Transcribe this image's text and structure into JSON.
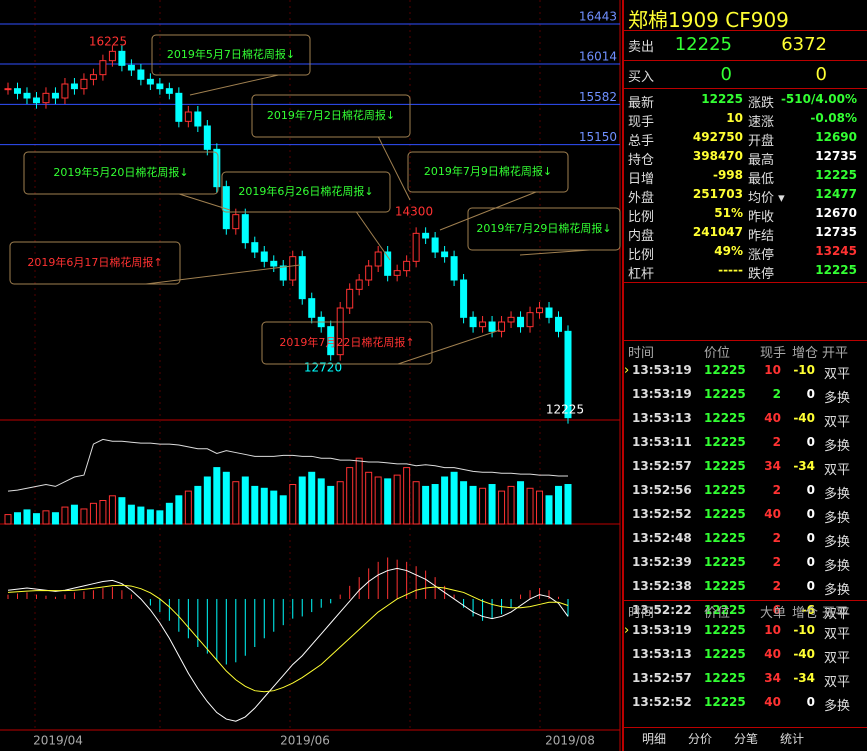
{
  "chart_data": {
    "type": "candlestick",
    "price_lines": [
      16443,
      16014,
      15582,
      15150
    ],
    "ylim": [
      12200,
      16700
    ],
    "up_color": "#ff3232",
    "down_color": "#00ffff",
    "closes": [
      15750,
      15700,
      15650,
      15600,
      15700,
      15650,
      15800,
      15750,
      15850,
      15900,
      16050,
      16150,
      16000,
      15950,
      15850,
      15800,
      15750,
      15700,
      15400,
      15500,
      15350,
      15100,
      14700,
      14250,
      14400,
      14100,
      14000,
      13900,
      13850,
      13700,
      13950,
      13500,
      13300,
      13200,
      12900,
      13400,
      13600,
      13700,
      13850,
      14000,
      13750,
      13800,
      13900,
      14200,
      14150,
      14000,
      13950,
      13700,
      13300,
      13200,
      13250,
      13150,
      13250,
      13300,
      13200,
      13350,
      13400,
      13300,
      13150,
      12225
    ],
    "extremes": [
      {
        "value": 16225,
        "color": "#ff3232"
      },
      {
        "value": 14300,
        "color": "#ff3232"
      },
      {
        "value": 12720,
        "color": "#00ffff"
      },
      {
        "value": 12225,
        "color": "#ffffff"
      }
    ],
    "annotations": [
      {
        "text": "2019年5月7日棉花周报↓",
        "color": "#33ff33"
      },
      {
        "text": "2019年7月2日棉花周报↓",
        "color": "#33ff33"
      },
      {
        "text": "2019年5月20日棉花周报↓",
        "color": "#33ff33"
      },
      {
        "text": "2019年6月26日棉花周报↓",
        "color": "#33ff33"
      },
      {
        "text": "2019年7月9日棉花周报↓",
        "color": "#33ff33"
      },
      {
        "text": "2019年7月29日棉花周报↓",
        "color": "#33ff33"
      },
      {
        "text": "2019年6月17日棉花周报↑",
        "color": "#ff3232"
      },
      {
        "text": "2019年7月22日棉花周报↑",
        "color": "#ff3232"
      }
    ],
    "volume": {
      "ylim": [
        0,
        100
      ],
      "values": [
        10,
        12,
        15,
        11,
        14,
        12,
        18,
        20,
        16,
        22,
        25,
        30,
        28,
        20,
        18,
        15,
        14,
        22,
        30,
        35,
        40,
        50,
        60,
        55,
        45,
        50,
        40,
        38,
        35,
        30,
        42,
        50,
        55,
        48,
        40,
        45,
        60,
        70,
        55,
        50,
        48,
        52,
        60,
        45,
        40,
        42,
        50,
        55,
        45,
        40,
        38,
        42,
        35,
        40,
        45,
        38,
        35,
        30,
        40,
        42
      ],
      "open_interest": [
        35,
        36,
        38,
        40,
        42,
        40,
        45,
        50,
        52,
        85,
        90,
        88,
        88,
        87,
        86,
        86,
        85,
        85,
        84,
        82,
        80,
        80,
        75,
        78,
        76,
        74,
        72,
        72,
        72,
        73,
        73,
        72,
        72,
        70,
        70,
        68,
        68,
        67,
        66,
        66,
        65,
        64,
        64,
        62,
        63,
        62,
        60,
        60,
        58,
        56,
        55,
        55,
        54,
        54,
        53,
        53,
        52,
        52,
        51,
        51
      ]
    },
    "macd": {
      "ylim": [
        -600,
        270
      ],
      "hist": [
        20,
        25,
        30,
        20,
        15,
        10,
        20,
        30,
        35,
        40,
        50,
        55,
        40,
        20,
        0,
        -30,
        -60,
        -100,
        -150,
        -180,
        -220,
        -250,
        -280,
        -300,
        -290,
        -260,
        -220,
        -180,
        -150,
        -120,
        -90,
        -80,
        -60,
        -40,
        -20,
        20,
        60,
        100,
        140,
        170,
        190,
        180,
        170,
        150,
        130,
        100,
        60,
        20,
        -40,
        -80,
        -100,
        -90,
        -70,
        -40,
        20,
        40,
        50,
        40,
        10,
        -80
      ],
      "dif": [
        40,
        45,
        50,
        45,
        40,
        35,
        40,
        50,
        60,
        70,
        80,
        85,
        70,
        40,
        0,
        -50,
        -110,
        -180,
        -260,
        -340,
        -410,
        -470,
        -520,
        -550,
        -560,
        -540,
        -500,
        -450,
        -400,
        -350,
        -300,
        -260,
        -210,
        -160,
        -110,
        -60,
        -10,
        40,
        80,
        110,
        130,
        140,
        130,
        110,
        90,
        60,
        30,
        0,
        -30,
        -60,
        -80,
        -90,
        -80,
        -60,
        -30,
        0,
        20,
        10,
        -20,
        -80
      ],
      "dea": [
        30,
        33,
        36,
        38,
        39,
        38,
        38,
        40,
        44,
        49,
        55,
        61,
        63,
        59,
        47,
        28,
        0,
        -36,
        -80,
        -130,
        -180,
        -230,
        -280,
        -330,
        -370,
        -400,
        -420,
        -425,
        -420,
        -405,
        -385,
        -360,
        -330,
        -300,
        -260,
        -220,
        -180,
        -140,
        -100,
        -60,
        -30,
        0,
        20,
        40,
        50,
        55,
        50,
        40,
        30,
        10,
        -10,
        -25,
        -35,
        -40,
        -40,
        -35,
        -25,
        -15,
        -15,
        -30
      ]
    },
    "x_labels": [
      "2019/04",
      "2019/06",
      "2019/08"
    ]
  },
  "panel": {
    "title": "郑棉1909  CF909",
    "sell": {
      "label": "卖出",
      "price": 12225,
      "volume": 6372
    },
    "buy": {
      "label": "买入",
      "price": 0,
      "volume": 0
    },
    "quotes": [
      {
        "l": "最新",
        "v": 12225,
        "vc": "#33ff33",
        "l2": "涨跌",
        "v2": "-510/4.00%",
        "vc2": "#33ff33"
      },
      {
        "l": "现手",
        "v": 10,
        "vc": "#ffff33",
        "l2": "速涨",
        "v2": "-0.08%",
        "vc2": "#33ff33"
      },
      {
        "l": "总手",
        "v": 492750,
        "vc": "#ffff33",
        "l2": "开盘",
        "v2": 12690,
        "vc2": "#33ff33"
      },
      {
        "l": "持仓",
        "v": 398470,
        "vc": "#ffff33",
        "l2": "最高",
        "v2": 12735,
        "vc2": "#ffffff"
      },
      {
        "l": "日增",
        "v": -998,
        "vc": "#ffff33",
        "l2": "最低",
        "v2": 12225,
        "vc2": "#33ff33"
      },
      {
        "l": "外盘",
        "v": 251703,
        "vc": "#ffff33",
        "l2": "均价 ▾",
        "v2": 12477,
        "vc2": "#33ff33"
      },
      {
        "l": "比例",
        "v": "51%",
        "vc": "#ffff33",
        "l2": "昨收",
        "v2": 12670,
        "vc2": "#ffffff"
      },
      {
        "l": "内盘",
        "v": 241047,
        "vc": "#ffff33",
        "l2": "昨结",
        "v2": 12735,
        "vc2": "#ffffff"
      },
      {
        "l": "比例",
        "v": "49%",
        "vc": "#ffff33",
        "l2": "涨停",
        "v2": 13245,
        "vc2": "#ff3232"
      },
      {
        "l": "杠杆",
        "v": "-----",
        "vc": "#ffff33",
        "l2": "跌停",
        "v2": 12225,
        "vc2": "#33ff33"
      }
    ],
    "trades": {
      "header": [
        "时间",
        "价位",
        "现手",
        "增仓",
        "开平"
      ],
      "rows": [
        {
          "t": "13:53:19",
          "p": 12225,
          "h": 10,
          "c": -10,
          "k": "双平",
          "hc": "#ff3232",
          "cc": "#ffff33"
        },
        {
          "t": "13:53:19",
          "p": 12225,
          "h": 2,
          "c": 0,
          "k": "多换",
          "hc": "#33ff33",
          "cc": "#ffffff"
        },
        {
          "t": "13:53:13",
          "p": 12225,
          "h": 40,
          "c": -40,
          "k": "双平",
          "hc": "#ff3232",
          "cc": "#ffff33"
        },
        {
          "t": "13:53:11",
          "p": 12225,
          "h": 2,
          "c": 0,
          "k": "多换",
          "hc": "#ff3232",
          "cc": "#ffffff"
        },
        {
          "t": "13:52:57",
          "p": 12225,
          "h": 34,
          "c": -34,
          "k": "双平",
          "hc": "#ff3232",
          "cc": "#ffff33"
        },
        {
          "t": "13:52:56",
          "p": 12225,
          "h": 2,
          "c": 0,
          "k": "多换",
          "hc": "#ff3232",
          "cc": "#ffffff"
        },
        {
          "t": "13:52:52",
          "p": 12225,
          "h": 40,
          "c": 0,
          "k": "多换",
          "hc": "#ff3232",
          "cc": "#ffffff"
        },
        {
          "t": "13:52:48",
          "p": 12225,
          "h": 2,
          "c": 0,
          "k": "多换",
          "hc": "#ff3232",
          "cc": "#ffffff"
        },
        {
          "t": "13:52:39",
          "p": 12225,
          "h": 2,
          "c": 0,
          "k": "多换",
          "hc": "#ff3232",
          "cc": "#ffffff"
        },
        {
          "t": "13:52:38",
          "p": 12225,
          "h": 2,
          "c": 0,
          "k": "多换",
          "hc": "#ff3232",
          "cc": "#ffffff"
        },
        {
          "t": "13:52:22",
          "p": 12225,
          "h": 6,
          "c": -6,
          "k": "双平",
          "hc": "#ff3232",
          "cc": "#ffff33"
        }
      ]
    },
    "big_orders": {
      "header": [
        "时间",
        "价位",
        "大单",
        "增仓",
        "开平"
      ],
      "rows": [
        {
          "t": "13:53:19",
          "p": 12225,
          "h": 10,
          "c": -10,
          "k": "双平",
          "hc": "#ff3232",
          "cc": "#ffff33"
        },
        {
          "t": "13:53:13",
          "p": 12225,
          "h": 40,
          "c": -40,
          "k": "双平",
          "hc": "#ff3232",
          "cc": "#ffff33"
        },
        {
          "t": "13:52:57",
          "p": 12225,
          "h": 34,
          "c": -34,
          "k": "双平",
          "hc": "#ff3232",
          "cc": "#ffff33"
        },
        {
          "t": "13:52:52",
          "p": 12225,
          "h": 40,
          "c": 0,
          "k": "多换",
          "hc": "#ff3232",
          "cc": "#ffffff"
        }
      ]
    },
    "tabs": [
      "明细",
      "分价",
      "分笔",
      "统计"
    ]
  }
}
